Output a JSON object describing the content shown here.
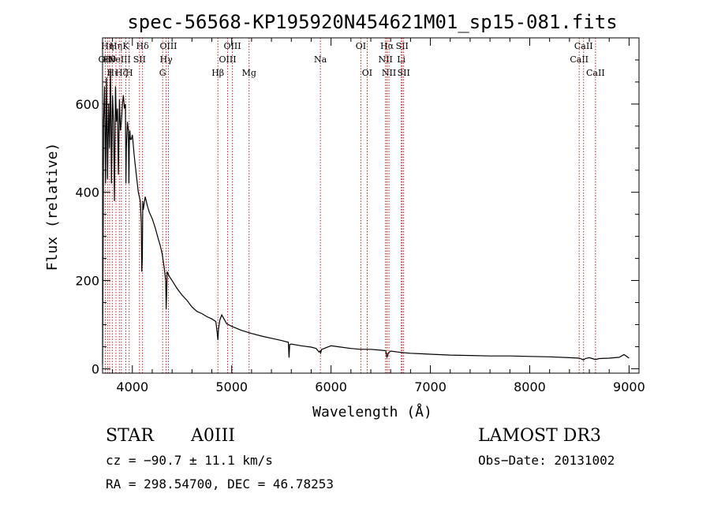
{
  "chart_data": {
    "type": "line",
    "title": "spec-56568-KP195920N454621M01_sp15-081.fits",
    "xlabel": "Wavelength (Å)",
    "ylabel": "Flux (relative)",
    "xlim": [
      3700,
      9100
    ],
    "ylim": [
      -10,
      750
    ],
    "xticks": [
      4000,
      5000,
      6000,
      7000,
      8000,
      9000
    ],
    "yticks": [
      0,
      200,
      400,
      600
    ],
    "series": [
      {
        "name": "flux",
        "x": [
          3700,
          3705,
          3710,
          3720,
          3730,
          3740,
          3750,
          3760,
          3770,
          3780,
          3790,
          3800,
          3810,
          3820,
          3830,
          3840,
          3850,
          3860,
          3870,
          3880,
          3890,
          3900,
          3910,
          3920,
          3930,
          3935,
          3940,
          3950,
          3960,
          3965,
          3970,
          3975,
          3980,
          3990,
          4000,
          4020,
          4040,
          4060,
          4080,
          4090,
          4095,
          4100,
          4105,
          4110,
          4130,
          4150,
          4170,
          4200,
          4230,
          4260,
          4280,
          4300,
          4320,
          4335,
          4340,
          4345,
          4350,
          4370,
          4400,
          4450,
          4500,
          4550,
          4600,
          4650,
          4700,
          4750,
          4800,
          4840,
          4855,
          4861,
          4867,
          4880,
          4900,
          4950,
          5000,
          5100,
          5200,
          5300,
          5400,
          5500,
          5570,
          5577,
          5584,
          5600,
          5700,
          5800,
          5850,
          5880,
          5890,
          5896,
          5905,
          5920,
          6000,
          6100,
          6200,
          6300,
          6400,
          6500,
          6550,
          6563,
          6576,
          6600,
          6700,
          6800,
          6900,
          7000,
          7200,
          7400,
          7600,
          7800,
          8000,
          8200,
          8400,
          8500,
          8542,
          8560,
          8600,
          8662,
          8700,
          8800,
          8900,
          8950,
          9000
        ],
        "y": [
          10,
          230,
          560,
          640,
          420,
          660,
          430,
          600,
          500,
          680,
          420,
          620,
          560,
          380,
          640,
          560,
          590,
          440,
          610,
          540,
          560,
          600,
          620,
          590,
          600,
          420,
          500,
          560,
          540,
          420,
          520,
          540,
          520,
          520,
          530,
          480,
          440,
          400,
          380,
          330,
          220,
          250,
          380,
          360,
          390,
          370,
          355,
          340,
          320,
          295,
          280,
          260,
          230,
          200,
          135,
          170,
          220,
          210,
          200,
          182,
          167,
          155,
          140,
          130,
          125,
          118,
          113,
          107,
          80,
          65,
          90,
          110,
          122,
          102,
          96,
          87,
          80,
          74,
          69,
          64,
          60,
          25,
          55,
          56,
          52,
          49,
          46,
          38,
          40,
          36,
          44,
          45,
          52,
          49,
          46,
          44,
          44,
          42,
          41,
          25,
          36,
          40,
          37,
          35,
          34,
          33,
          31,
          30,
          29,
          29,
          28,
          27,
          25,
          24,
          20,
          23,
          25,
          21,
          23,
          24,
          26,
          32,
          24
        ]
      }
    ],
    "lines": [
      {
        "wl": 3727,
        "label": "OII",
        "row": 1
      },
      {
        "wl": 3750,
        "label": "Hη",
        "row": 0
      },
      {
        "wl": 3771,
        "label": "Hθ",
        "row": 1
      },
      {
        "wl": 3798,
        "label": "Hι",
        "row": 2
      },
      {
        "wl": 3835,
        "label": "Hη",
        "row": 0
      },
      {
        "wl": 3869,
        "label": "NeIII",
        "row": 1
      },
      {
        "wl": 3889,
        "label": "Hζ",
        "row": 2
      },
      {
        "wl": 3934,
        "label": "K",
        "row": 0
      },
      {
        "wl": 3968,
        "label": "H",
        "row": 2
      },
      {
        "wl": 4072,
        "label": "SII",
        "row": 1
      },
      {
        "wl": 4102,
        "label": "Hδ",
        "row": 0
      },
      {
        "wl": 4305,
        "label": "G",
        "row": 2
      },
      {
        "wl": 4340,
        "label": "Hγ",
        "row": 1
      },
      {
        "wl": 4363,
        "label": "OIII",
        "row": 0
      },
      {
        "wl": 4861,
        "label": "Hβ",
        "row": 2
      },
      {
        "wl": 4959,
        "label": "OIII",
        "row": 1
      },
      {
        "wl": 5007,
        "label": "OIII",
        "row": 0
      },
      {
        "wl": 5175,
        "label": "Mg",
        "row": 2
      },
      {
        "wl": 5893,
        "label": "Na",
        "row": 1
      },
      {
        "wl": 6300,
        "label": "OI",
        "row": 0
      },
      {
        "wl": 6364,
        "label": "OI",
        "row": 2
      },
      {
        "wl": 6548,
        "label": "NII",
        "row": 1
      },
      {
        "wl": 6563,
        "label": "Hα",
        "row": 0
      },
      {
        "wl": 6583,
        "label": "NII",
        "row": 2
      },
      {
        "wl": 6707,
        "label": "Li",
        "row": 1
      },
      {
        "wl": 6716,
        "label": "SII",
        "row": 0
      },
      {
        "wl": 6731,
        "label": "SII",
        "row": 2
      },
      {
        "wl": 8498,
        "label": "CaII",
        "row": 1
      },
      {
        "wl": 8542,
        "label": "CaII",
        "row": 0
      },
      {
        "wl": 8662,
        "label": "CaII",
        "row": 2
      }
    ]
  },
  "info": {
    "class": "STAR",
    "subclass": "A0III",
    "survey": "LAMOST DR3",
    "cz": "cz = −90.7 ± 11.1 km/s",
    "obsdate": "Obs−Date: 20131002",
    "radec": "RA = 298.54700, DEC =  46.78253"
  }
}
